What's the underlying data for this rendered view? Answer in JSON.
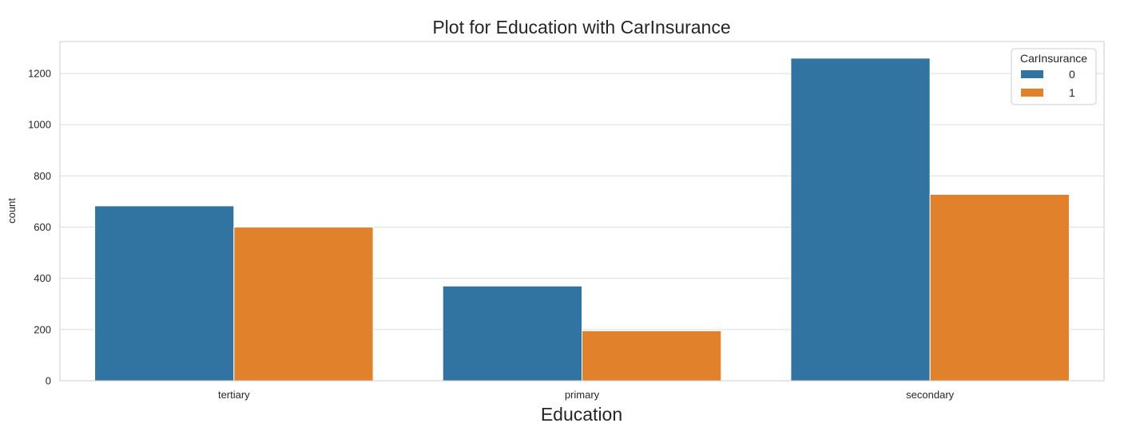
{
  "chart_data": {
    "type": "bar",
    "title": "Plot for Education with CarInsurance",
    "xlabel": "Education",
    "ylabel": "count",
    "categories": [
      "tertiary",
      "primary",
      "secondary"
    ],
    "series": [
      {
        "name": "0",
        "values": [
          683,
          370,
          1260
        ],
        "color": "#3274a1"
      },
      {
        "name": "1",
        "values": [
          600,
          195,
          728
        ],
        "color": "#e1812c"
      }
    ],
    "ylim": [
      0,
      1325
    ],
    "yticks": [
      0,
      200,
      400,
      600,
      800,
      1000,
      1200
    ],
    "grid": true,
    "legend": {
      "title": "CarInsurance",
      "placement": "top-right"
    }
  }
}
